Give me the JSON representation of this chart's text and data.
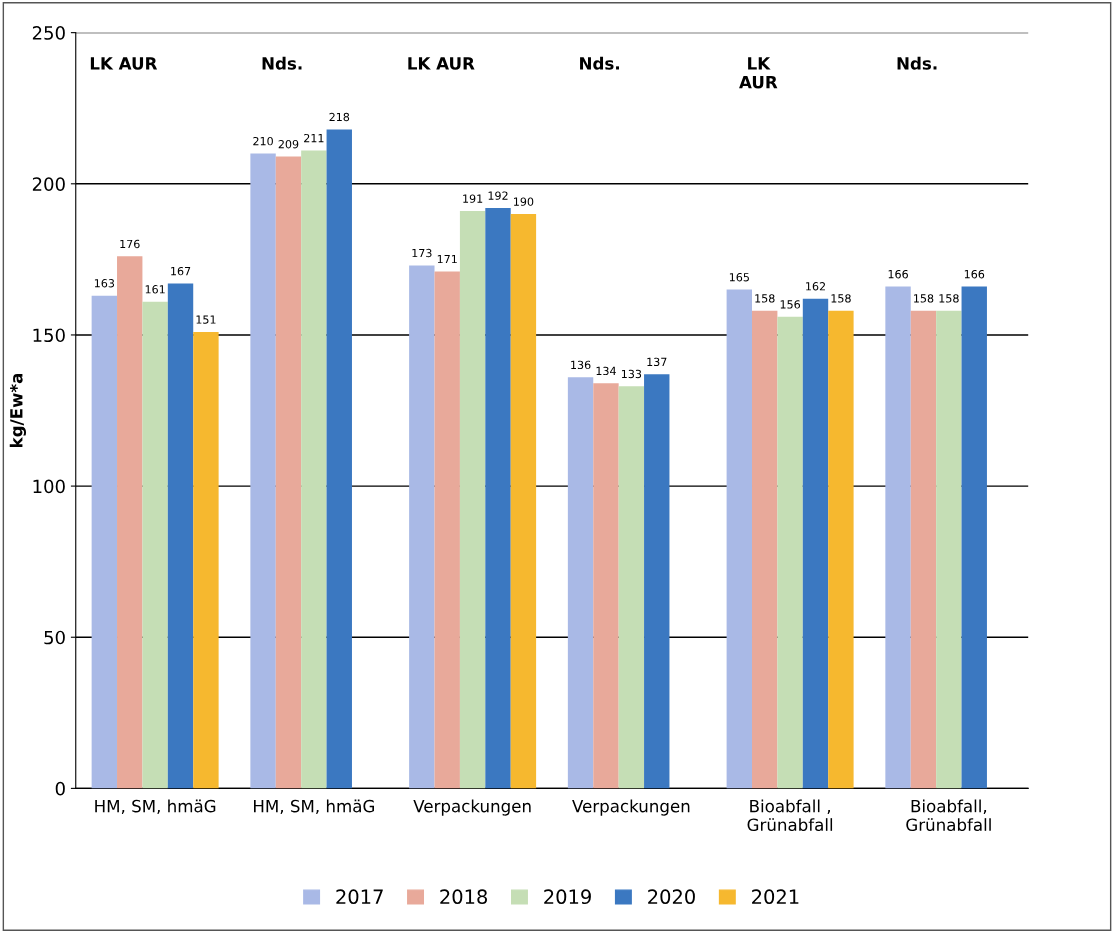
{
  "chart_data": {
    "type": "bar",
    "ylabel": "kg/Ew*a",
    "categories": [
      "HM, SM, hmäG",
      "HM, SM, hmäG",
      "Verpackungen",
      "Verpackungen",
      "Bioabfall ,\nGrünabfall",
      "Bioabfall,\nGrünabfall"
    ],
    "series": [
      {
        "name": "2017",
        "color": "#a9b9e6",
        "values": [
          163,
          210,
          173,
          136,
          165,
          166
        ]
      },
      {
        "name": "2018",
        "color": "#e8a99a",
        "values": [
          176,
          209,
          171,
          134,
          158,
          158
        ]
      },
      {
        "name": "2019",
        "color": "#c5deb5",
        "values": [
          161,
          211,
          191,
          133,
          156,
          158
        ]
      },
      {
        "name": "2020",
        "color": "#3b78c1",
        "values": [
          167,
          218,
          192,
          137,
          162,
          166
        ]
      },
      {
        "name": "2021",
        "color": "#f6b82f",
        "values": [
          151,
          null,
          190,
          null,
          158,
          null
        ]
      }
    ],
    "annotations": [
      "LK AUR",
      "Nds.",
      "LK AUR",
      "Nds.",
      "LK\nAUR",
      "Nds."
    ],
    "ylim": [
      0,
      250
    ],
    "yticks": [
      0,
      50,
      100,
      150,
      200,
      250
    ],
    "grid": "y",
    "legend": "bottom",
    "data_labels": true
  }
}
